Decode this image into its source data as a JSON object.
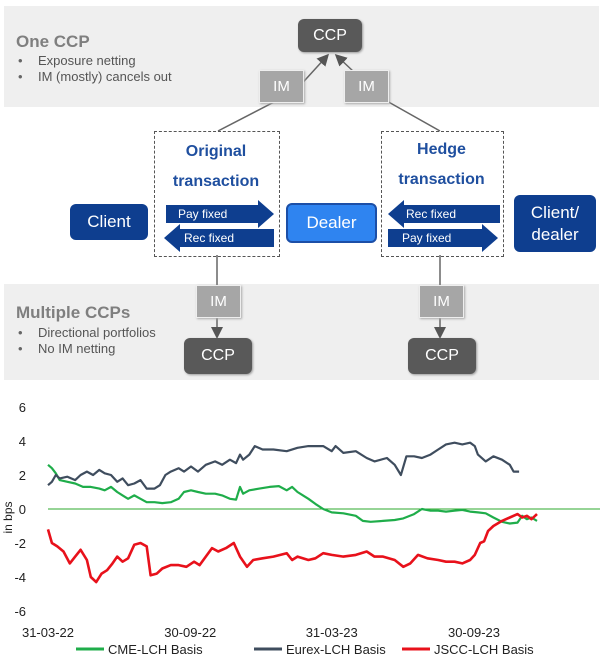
{
  "diagram": {
    "one_ccp": {
      "title": "One CCP",
      "bullets": [
        "Exposure netting",
        "IM (mostly) cancels out"
      ]
    },
    "multiple_ccps": {
      "title": "Multiple CCPs",
      "bullets": [
        "Directional portfolios",
        "No IM netting"
      ]
    },
    "ccp_label": "CCP",
    "im_label": "IM",
    "client_label": "Client",
    "dealer_label": "Dealer",
    "client_dealer_label": "Client/ dealer",
    "original_transaction": [
      "Original",
      "transaction"
    ],
    "hedge_transaction": [
      "Hedge",
      "transaction"
    ],
    "pay_fixed": "Pay fixed",
    "rec_fixed": "Rec fixed",
    "colors": {
      "navy": "#0e3e8f",
      "blue": "#2f84f0",
      "grey_box": "#595959",
      "im_box": "#a6a6a6"
    }
  },
  "chart_data": {
    "type": "line",
    "ylabel": "in bps",
    "ylim": [
      -6,
      6
    ],
    "yticks": [
      -6,
      -4,
      -2,
      0,
      2,
      4,
      6
    ],
    "x_tick_labels": [
      "31-03-22",
      "30-09-22",
      "31-03-23",
      "30-09-23"
    ],
    "x_tick_dates": [
      "2022-03-31",
      "2022-09-30",
      "2023-03-31",
      "2023-09-30"
    ],
    "legend_position": "bottom",
    "series": [
      {
        "name": "CME-LCH Basis",
        "color": "#1fad4a",
        "points": [
          [
            "2022-03-31",
            2.6
          ],
          [
            "2022-04-05",
            2.4
          ],
          [
            "2022-04-10",
            2.1
          ],
          [
            "2022-04-15",
            1.7
          ],
          [
            "2022-04-25",
            1.6
          ],
          [
            "2022-05-05",
            1.5
          ],
          [
            "2022-05-15",
            1.3
          ],
          [
            "2022-05-25",
            1.3
          ],
          [
            "2022-06-05",
            1.2
          ],
          [
            "2022-06-12",
            1.1
          ],
          [
            "2022-06-20",
            1.3
          ],
          [
            "2022-06-28",
            1.0
          ],
          [
            "2022-07-05",
            0.8
          ],
          [
            "2022-07-12",
            0.6
          ],
          [
            "2022-07-20",
            0.8
          ],
          [
            "2022-07-28",
            0.6
          ],
          [
            "2022-08-05",
            0.4
          ],
          [
            "2022-08-15",
            0.4
          ],
          [
            "2022-08-25",
            0.35
          ],
          [
            "2022-09-05",
            0.4
          ],
          [
            "2022-09-15",
            0.6
          ],
          [
            "2022-09-22",
            1.0
          ],
          [
            "2022-10-01",
            1.1
          ],
          [
            "2022-10-10",
            1.0
          ],
          [
            "2022-10-20",
            0.9
          ],
          [
            "2022-11-01",
            0.9
          ],
          [
            "2022-11-10",
            0.8
          ],
          [
            "2022-11-20",
            0.6
          ],
          [
            "2022-11-28",
            0.55
          ],
          [
            "2022-12-03",
            1.3
          ],
          [
            "2022-12-07",
            0.9
          ],
          [
            "2022-12-15",
            1.1
          ],
          [
            "2022-12-28",
            1.2
          ],
          [
            "2023-01-10",
            1.3
          ],
          [
            "2023-01-22",
            1.35
          ],
          [
            "2023-02-01",
            1.1
          ],
          [
            "2023-02-08",
            1.3
          ],
          [
            "2023-02-15",
            1.0
          ],
          [
            "2023-02-22",
            0.8
          ],
          [
            "2023-03-01",
            0.6
          ],
          [
            "2023-03-10",
            0.3
          ],
          [
            "2023-03-20",
            0.0
          ],
          [
            "2023-03-31",
            -0.2
          ],
          [
            "2023-04-15",
            -0.25
          ],
          [
            "2023-05-01",
            -0.4
          ],
          [
            "2023-05-10",
            -0.7
          ],
          [
            "2023-05-20",
            -0.75
          ],
          [
            "2023-06-05",
            -0.7
          ],
          [
            "2023-06-20",
            -0.65
          ],
          [
            "2023-07-01",
            -0.55
          ],
          [
            "2023-07-15",
            -0.3
          ],
          [
            "2023-07-25",
            0.0
          ],
          [
            "2023-08-05",
            -0.1
          ],
          [
            "2023-08-15",
            -0.1
          ],
          [
            "2023-08-25",
            -0.15
          ],
          [
            "2023-09-05",
            -0.1
          ],
          [
            "2023-09-15",
            -0.05
          ],
          [
            "2023-09-25",
            -0.15
          ],
          [
            "2023-10-05",
            -0.2
          ],
          [
            "2023-10-15",
            -0.25
          ],
          [
            "2023-10-25",
            -0.5
          ],
          [
            "2023-11-05",
            -0.75
          ],
          [
            "2023-11-15",
            -0.85
          ],
          [
            "2023-11-25",
            -0.8
          ],
          [
            "2023-12-01",
            -0.4
          ],
          [
            "2023-12-07",
            -0.6
          ],
          [
            "2023-12-13",
            -0.5
          ],
          [
            "2023-12-20",
            -0.7
          ]
        ]
      },
      {
        "name": "Eurex-LCH Basis",
        "color": "#3f4d5e",
        "points": [
          [
            "2022-03-31",
            1.4
          ],
          [
            "2022-04-05",
            1.6
          ],
          [
            "2022-04-10",
            2.0
          ],
          [
            "2022-04-15",
            1.8
          ],
          [
            "2022-04-25",
            1.9
          ],
          [
            "2022-05-05",
            1.7
          ],
          [
            "2022-05-12",
            2.0
          ],
          [
            "2022-05-20",
            2.2
          ],
          [
            "2022-05-28",
            2.0
          ],
          [
            "2022-06-05",
            2.3
          ],
          [
            "2022-06-12",
            2.1
          ],
          [
            "2022-06-20",
            2.0
          ],
          [
            "2022-06-28",
            1.6
          ],
          [
            "2022-07-05",
            1.8
          ],
          [
            "2022-07-12",
            1.4
          ],
          [
            "2022-07-20",
            1.5
          ],
          [
            "2022-07-28",
            1.7
          ],
          [
            "2022-08-05",
            1.2
          ],
          [
            "2022-08-15",
            1.2
          ],
          [
            "2022-08-22",
            1.4
          ],
          [
            "2022-08-29",
            2.0
          ],
          [
            "2022-09-05",
            2.2
          ],
          [
            "2022-09-15",
            2.4
          ],
          [
            "2022-09-22",
            2.2
          ],
          [
            "2022-10-01",
            2.5
          ],
          [
            "2022-10-10",
            2.2
          ],
          [
            "2022-10-20",
            2.6
          ],
          [
            "2022-11-01",
            2.8
          ],
          [
            "2022-11-10",
            2.6
          ],
          [
            "2022-11-20",
            2.9
          ],
          [
            "2022-11-28",
            2.7
          ],
          [
            "2022-12-03",
            3.2
          ],
          [
            "2022-12-07",
            2.9
          ],
          [
            "2022-12-15",
            3.2
          ],
          [
            "2022-12-22",
            3.7
          ],
          [
            "2023-01-01",
            3.5
          ],
          [
            "2023-01-15",
            3.5
          ],
          [
            "2023-02-01",
            3.4
          ],
          [
            "2023-02-15",
            3.6
          ],
          [
            "2023-03-01",
            3.7
          ],
          [
            "2023-03-20",
            3.7
          ],
          [
            "2023-03-31",
            3.4
          ],
          [
            "2023-04-05",
            3.7
          ],
          [
            "2023-04-15",
            3.3
          ],
          [
            "2023-05-01",
            3.4
          ],
          [
            "2023-05-15",
            3.0
          ],
          [
            "2023-05-25",
            2.8
          ],
          [
            "2023-06-10",
            3.0
          ],
          [
            "2023-06-20",
            2.6
          ],
          [
            "2023-06-28",
            2.0
          ],
          [
            "2023-07-05",
            3.1
          ],
          [
            "2023-07-15",
            3.1
          ],
          [
            "2023-07-25",
            3.0
          ],
          [
            "2023-08-05",
            3.2
          ],
          [
            "2023-08-15",
            3.5
          ],
          [
            "2023-08-25",
            3.8
          ],
          [
            "2023-09-05",
            3.9
          ],
          [
            "2023-09-15",
            3.8
          ],
          [
            "2023-09-25",
            3.9
          ],
          [
            "2023-10-01",
            3.7
          ],
          [
            "2023-10-05",
            3.2
          ],
          [
            "2023-10-15",
            2.8
          ],
          [
            "2023-10-25",
            3.1
          ],
          [
            "2023-11-05",
            2.9
          ],
          [
            "2023-11-15",
            2.6
          ],
          [
            "2023-11-20",
            2.2
          ],
          [
            "2023-11-27",
            2.2
          ]
        ]
      },
      {
        "name": "JSCC-LCH  Basis",
        "color": "#e8111b",
        "points": [
          [
            "2022-03-31",
            -1.2
          ],
          [
            "2022-04-05",
            -2.0
          ],
          [
            "2022-04-12",
            -2.2
          ],
          [
            "2022-04-20",
            -2.5
          ],
          [
            "2022-04-28",
            -3.2
          ],
          [
            "2022-05-05",
            -2.8
          ],
          [
            "2022-05-12",
            -2.4
          ],
          [
            "2022-05-20",
            -3.0
          ],
          [
            "2022-05-25",
            -4.0
          ],
          [
            "2022-06-01",
            -4.3
          ],
          [
            "2022-06-08",
            -3.8
          ],
          [
            "2022-06-15",
            -3.6
          ],
          [
            "2022-06-22",
            -3.2
          ],
          [
            "2022-06-28",
            -2.8
          ],
          [
            "2022-07-05",
            -3.1
          ],
          [
            "2022-07-12",
            -2.9
          ],
          [
            "2022-07-20",
            -2.1
          ],
          [
            "2022-07-28",
            -2.0
          ],
          [
            "2022-08-05",
            -2.2
          ],
          [
            "2022-08-10",
            -3.9
          ],
          [
            "2022-08-18",
            -3.8
          ],
          [
            "2022-08-25",
            -3.5
          ],
          [
            "2022-09-05",
            -3.3
          ],
          [
            "2022-09-15",
            -3.3
          ],
          [
            "2022-09-25",
            -3.4
          ],
          [
            "2022-10-05",
            -3.1
          ],
          [
            "2022-10-12",
            -3.3
          ],
          [
            "2022-10-20",
            -2.8
          ],
          [
            "2022-10-28",
            -2.3
          ],
          [
            "2022-11-05",
            -2.5
          ],
          [
            "2022-11-15",
            -2.3
          ],
          [
            "2022-11-25",
            -2.0
          ],
          [
            "2022-12-03",
            -2.8
          ],
          [
            "2022-12-12",
            -3.4
          ],
          [
            "2022-12-20",
            -3.0
          ],
          [
            "2023-01-01",
            -2.9
          ],
          [
            "2023-01-15",
            -2.8
          ],
          [
            "2023-02-01",
            -2.6
          ],
          [
            "2023-02-08",
            -3.0
          ],
          [
            "2023-02-15",
            -2.8
          ],
          [
            "2023-03-01",
            -3.0
          ],
          [
            "2023-03-10",
            -2.9
          ],
          [
            "2023-03-20",
            -2.6
          ],
          [
            "2023-03-31",
            -2.7
          ],
          [
            "2023-04-15",
            -2.8
          ],
          [
            "2023-05-01",
            -2.7
          ],
          [
            "2023-05-15",
            -2.5
          ],
          [
            "2023-05-25",
            -2.8
          ],
          [
            "2023-06-05",
            -2.8
          ],
          [
            "2023-06-20",
            -3.0
          ],
          [
            "2023-07-01",
            -3.4
          ],
          [
            "2023-07-10",
            -3.2
          ],
          [
            "2023-07-20",
            -2.7
          ],
          [
            "2023-08-01",
            -2.9
          ],
          [
            "2023-08-15",
            -3.0
          ],
          [
            "2023-08-25",
            -3.1
          ],
          [
            "2023-09-05",
            -3.1
          ],
          [
            "2023-09-15",
            -3.2
          ],
          [
            "2023-09-25",
            -3.0
          ],
          [
            "2023-10-01",
            -2.7
          ],
          [
            "2023-10-08",
            -2.0
          ],
          [
            "2023-10-13",
            -1.9
          ],
          [
            "2023-10-18",
            -1.3
          ],
          [
            "2023-10-25",
            -1.0
          ],
          [
            "2023-11-05",
            -0.7
          ],
          [
            "2023-11-15",
            -0.5
          ],
          [
            "2023-11-25",
            -0.3
          ],
          [
            "2023-12-01",
            -0.5
          ],
          [
            "2023-12-07",
            -0.4
          ],
          [
            "2023-12-13",
            -0.6
          ],
          [
            "2023-12-20",
            -0.3
          ]
        ]
      }
    ]
  }
}
